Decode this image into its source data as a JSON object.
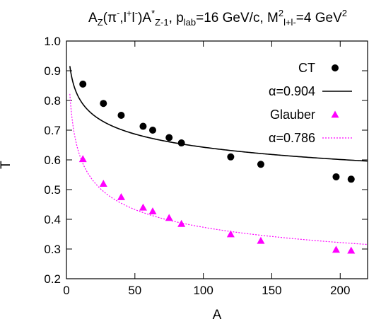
{
  "chart_data": {
    "type": "scatter",
    "title": {
      "segments": [
        {
          "text": "A"
        },
        {
          "text": "Z",
          "shift": "sub"
        },
        {
          "text": "(π"
        },
        {
          "text": "-",
          "shift": "super"
        },
        {
          "text": ",l"
        },
        {
          "text": "+",
          "shift": "super"
        },
        {
          "text": "l"
        },
        {
          "text": "-",
          "shift": "super"
        },
        {
          "text": ")A"
        },
        {
          "text": "*",
          "shift": "super"
        },
        {
          "text": "Z-1",
          "shift": "sub"
        },
        {
          "text": ", p"
        },
        {
          "text": "lab",
          "shift": "sub"
        },
        {
          "text": "=16 GeV/c, M"
        },
        {
          "text": "2",
          "shift": "super"
        },
        {
          "text": "l+l-",
          "shift": "sub"
        },
        {
          "text": "=4 GeV"
        },
        {
          "text": "2",
          "shift": "super"
        }
      ]
    },
    "xlabel": "A",
    "ylabel": "T",
    "xlim": [
      0,
      220
    ],
    "ylim": [
      0.2,
      1.0
    ],
    "xticks": [
      0,
      50,
      100,
      150,
      200
    ],
    "yticks": [
      0.2,
      0.3,
      0.4,
      0.5,
      0.6,
      0.7,
      0.8,
      0.9,
      1.0
    ],
    "legend_position": "top-right",
    "series": [
      {
        "name": "CT",
        "kind": "points",
        "marker": "circle",
        "color": "#000000",
        "x": [
          12,
          27,
          40,
          56,
          63,
          75,
          84,
          120,
          142,
          197,
          208
        ],
        "y": [
          0.855,
          0.79,
          0.75,
          0.713,
          0.7,
          0.675,
          0.657,
          0.61,
          0.585,
          0.543,
          0.535
        ]
      },
      {
        "name": "α=0.904",
        "kind": "curve",
        "line_style": "solid",
        "color": "#000000",
        "alpha": 0.904,
        "x_range": [
          2.5,
          220
        ]
      },
      {
        "name": "Glauber",
        "kind": "points",
        "marker": "triangle",
        "color": "#ff00ff",
        "x": [
          12,
          27,
          40,
          56,
          63,
          75,
          84,
          120,
          142,
          197,
          208
        ],
        "y": [
          0.603,
          0.52,
          0.475,
          0.44,
          0.427,
          0.405,
          0.385,
          0.35,
          0.328,
          0.298,
          0.295
        ]
      },
      {
        "name": "α=0.786",
        "kind": "curve",
        "line_style": "dotted",
        "color": "#ff00ff",
        "alpha": 0.786,
        "x_range": [
          2.5,
          220
        ]
      }
    ]
  }
}
